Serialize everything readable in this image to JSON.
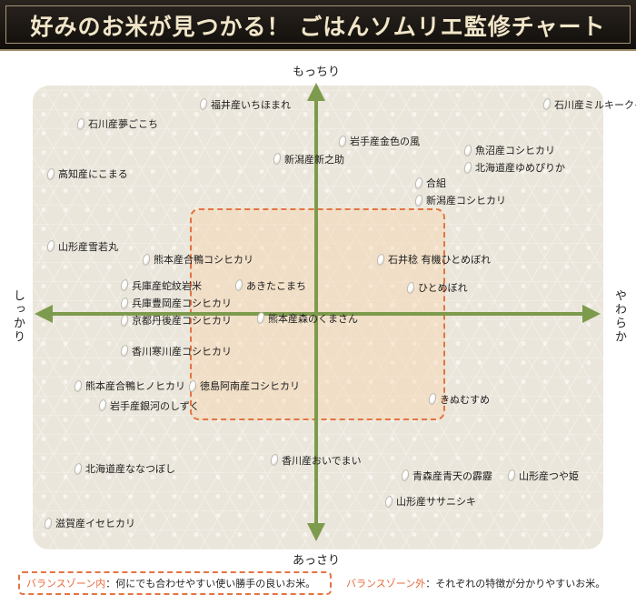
{
  "header": {
    "title": "好みのお米が見つかる！ ごはんソムリエ監修チャート"
  },
  "axes": {
    "top": "もっちり",
    "bottom": "あっさり",
    "left": "しっかり",
    "right": "やわらか"
  },
  "legend": {
    "inside_key": "バランスゾーン内",
    "inside_text": "：何にでも合わせやすい使い勝手の良いお米。",
    "outside_key": "バランスゾーン外",
    "outside_text": "：それぞれの特徴が分かりやすいお米。"
  },
  "colors": {
    "zone_border": "#e37442",
    "axis_arrow": "#7d9b4c",
    "chart_background": "#ebe6db",
    "header_background": "#1c1714",
    "header_text": "#f1e6c9"
  },
  "icons": {
    "rice_grain": "rice-grain-icon"
  },
  "chart_data": {
    "type": "scatter",
    "x_axis": {
      "negative": "しっかり",
      "positive": "やわらか"
    },
    "y_axis": {
      "negative": "あっさり",
      "positive": "もっちり"
    },
    "zone": {
      "name": "バランスゾーン",
      "x": [
        -0.47,
        0.53
      ],
      "y": [
        -0.47,
        0.47
      ]
    },
    "points": [
      {
        "name": "福井産いちほまれ",
        "x": -0.41,
        "y": 0.96
      },
      {
        "name": "石川産ミルキークイーン",
        "x": 0.85,
        "y": 0.96
      },
      {
        "name": "石川産夢ごこち",
        "x": -0.86,
        "y": 0.87
      },
      {
        "name": "岩手産金色の風",
        "x": 0.1,
        "y": 0.79
      },
      {
        "name": "魚沼産コシヒカリ",
        "x": 0.56,
        "y": 0.75
      },
      {
        "name": "新潟産新之助",
        "x": -0.14,
        "y": 0.71
      },
      {
        "name": "北海道産ゆめぴりか",
        "x": 0.56,
        "y": 0.67
      },
      {
        "name": "高知産にこまる",
        "x": -0.97,
        "y": 0.64
      },
      {
        "name": "合組",
        "x": 0.38,
        "y": 0.6
      },
      {
        "name": "新潟産コシヒカリ",
        "x": 0.38,
        "y": 0.52
      },
      {
        "name": "山形産雪若丸",
        "x": -0.97,
        "y": 0.31
      },
      {
        "name": "熊本産合鴨コシヒカリ",
        "x": -0.62,
        "y": 0.25
      },
      {
        "name": "石井稔 有機ひとめぼれ",
        "x": 0.24,
        "y": 0.25
      },
      {
        "name": "兵庫産蛇紋岩米",
        "x": -0.7,
        "y": 0.13
      },
      {
        "name": "あきたこまち",
        "x": -0.28,
        "y": 0.13
      },
      {
        "name": "ひとめぼれ",
        "x": 0.35,
        "y": 0.12
      },
      {
        "name": "兵庫豊岡産コシヒカリ",
        "x": -0.7,
        "y": 0.05
      },
      {
        "name": "京都丹後産コシヒカリ",
        "x": -0.7,
        "y": -0.03
      },
      {
        "name": "熊本産森のくまさん",
        "x": -0.2,
        "y": -0.02
      },
      {
        "name": "香川寒川産コシヒカリ",
        "x": -0.7,
        "y": -0.17
      },
      {
        "name": "熊本産合鴨ヒノヒカリ",
        "x": -0.87,
        "y": -0.33
      },
      {
        "name": "徳島阿南産コシヒカリ",
        "x": -0.45,
        "y": -0.33
      },
      {
        "name": "きぬむすめ",
        "x": 0.43,
        "y": -0.39
      },
      {
        "name": "岩手産銀河のしずく",
        "x": -0.78,
        "y": -0.42
      },
      {
        "name": "香川産おいでまい",
        "x": -0.15,
        "y": -0.67
      },
      {
        "name": "北海道産ななつぼし",
        "x": -0.87,
        "y": -0.71
      },
      {
        "name": "青森産青天の霹靂",
        "x": 0.33,
        "y": -0.74
      },
      {
        "name": "山形産つや姫",
        "x": 0.72,
        "y": -0.74
      },
      {
        "name": "山形産ササニシキ",
        "x": 0.27,
        "y": -0.86
      },
      {
        "name": "滋賀産イセヒカリ",
        "x": -0.98,
        "y": -0.96
      }
    ]
  }
}
